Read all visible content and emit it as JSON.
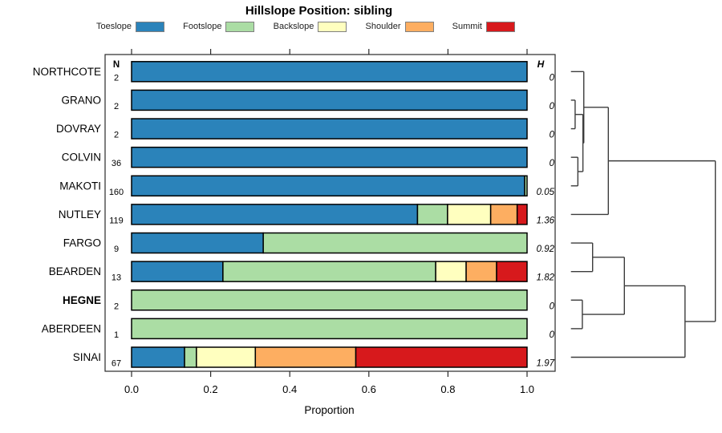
{
  "title": "Hillslope Position: sibling",
  "chart_data": {
    "type": "bar",
    "subtype": "horizontal-stacked-bars-with-dendrogram",
    "title": "Hillslope Position: sibling",
    "xlabel": "Proportion",
    "x_ticks": [
      0.0,
      0.2,
      0.4,
      0.6,
      0.8,
      1.0
    ],
    "xlim": [
      0.0,
      1.0
    ],
    "grid": false,
    "legend_position": "top",
    "legend": [
      {
        "label": "Toeslope",
        "color": "#2b83ba"
      },
      {
        "label": "Footslope",
        "color": "#abdda4"
      },
      {
        "label": "Backslope",
        "color": "#ffffbf"
      },
      {
        "label": "Shoulder",
        "color": "#fdae61"
      },
      {
        "label": "Summit",
        "color": "#d7191c"
      }
    ],
    "columns": {
      "n_header": "N",
      "h_header": "H"
    },
    "rows": [
      {
        "name": "NORTHCOTE",
        "n": 2,
        "h": "0",
        "bold": false,
        "proportions": {
          "Toeslope": 1.0
        }
      },
      {
        "name": "GRANO",
        "n": 2,
        "h": "0",
        "bold": false,
        "proportions": {
          "Toeslope": 1.0
        }
      },
      {
        "name": "DOVRAY",
        "n": 2,
        "h": "0",
        "bold": false,
        "proportions": {
          "Toeslope": 1.0
        }
      },
      {
        "name": "COLVIN",
        "n": 36,
        "h": "0",
        "bold": false,
        "proportions": {
          "Toeslope": 1.0
        }
      },
      {
        "name": "MAKOTI",
        "n": 160,
        "h": "0.05",
        "bold": false,
        "proportions": {
          "Toeslope": 0.994,
          "Footslope": 0.006
        }
      },
      {
        "name": "NUTLEY",
        "n": 119,
        "h": "1.36",
        "bold": false,
        "proportions": {
          "Toeslope": 0.723,
          "Footslope": 0.076,
          "Backslope": 0.109,
          "Shoulder": 0.067,
          "Summit": 0.025
        }
      },
      {
        "name": "FARGO",
        "n": 9,
        "h": "0.92",
        "bold": false,
        "proportions": {
          "Toeslope": 0.333,
          "Footslope": 0.667
        }
      },
      {
        "name": "BEARDEN",
        "n": 13,
        "h": "1.82",
        "bold": false,
        "proportions": {
          "Toeslope": 0.231,
          "Footslope": 0.538,
          "Backslope": 0.077,
          "Shoulder": 0.077,
          "Summit": 0.077
        }
      },
      {
        "name": "HEGNE",
        "n": 2,
        "h": "0",
        "bold": true,
        "proportions": {
          "Footslope": 1.0
        }
      },
      {
        "name": "ABERDEEN",
        "n": 1,
        "h": "0",
        "bold": false,
        "proportions": {
          "Footslope": 1.0
        }
      },
      {
        "name": "SINAI",
        "n": 67,
        "h": "1.97",
        "bold": false,
        "proportions": {
          "Toeslope": 0.134,
          "Footslope": 0.03,
          "Backslope": 0.149,
          "Shoulder": 0.254,
          "Summit": 0.433
        }
      }
    ],
    "dendrogram": {
      "orientation": "leaves-left-root-right",
      "merges": [
        {
          "a": {
            "leaf": "GRANO"
          },
          "b": {
            "leaf": "DOVRAY"
          },
          "h": 0.029
        },
        {
          "a": {
            "leaf": "COLVIN"
          },
          "b": {
            "leaf": "MAKOTI"
          },
          "h": 0.048
        },
        {
          "a": {
            "leaf": "HEGNE"
          },
          "b": {
            "leaf": "ABERDEEN"
          },
          "h": 0.079
        },
        {
          "a": {
            "node": 0
          },
          "b": {
            "node": 1
          },
          "h": 0.083
        },
        {
          "a": {
            "leaf": "NORTHCOTE"
          },
          "b": {
            "node": 3
          },
          "h": 0.089
        },
        {
          "a": {
            "leaf": "FARGO"
          },
          "b": {
            "leaf": "BEARDEN"
          },
          "h": 0.15
        },
        {
          "a": {
            "node": 4
          },
          "b": {
            "leaf": "NUTLEY"
          },
          "h": 0.259
        },
        {
          "a": {
            "node": 5
          },
          "b": {
            "node": 2
          },
          "h": 0.37
        },
        {
          "a": {
            "node": 7
          },
          "b": {
            "leaf": "SINAI"
          },
          "h": 0.79
        },
        {
          "a": {
            "node": 6
          },
          "b": {
            "node": 8
          },
          "h": 1.0
        }
      ]
    },
    "style": {
      "bar_border_color": "#000000",
      "dendrogram_line_color": "#3c3c3c",
      "panel_border_color": "#2a2a2a",
      "text_color": "#000000"
    }
  }
}
